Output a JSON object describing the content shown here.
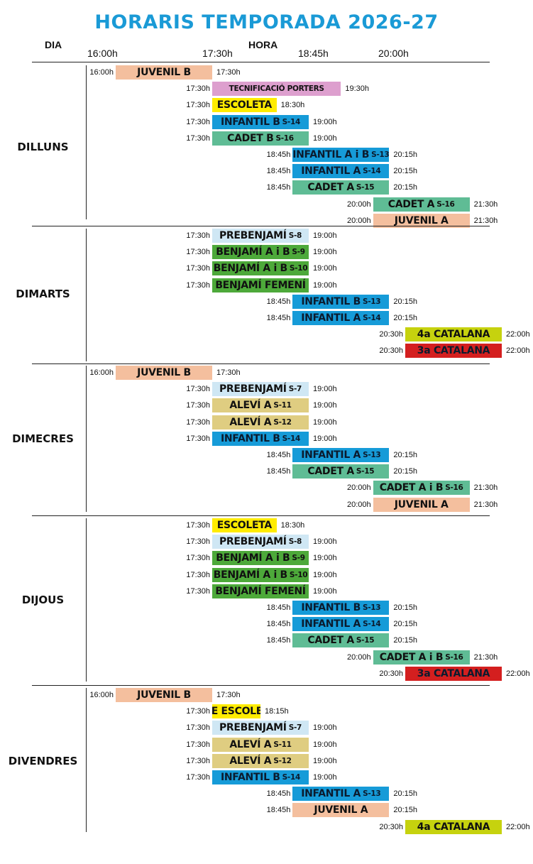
{
  "header": {
    "title": "HORARIS TEMPORADA 2026-27",
    "dia_label": "DIA",
    "hora_label": "HORA",
    "time_axis": [
      "16:00h",
      "17:30h",
      "18:45h",
      "20:00h"
    ]
  },
  "colors": {
    "juvenil": "#f4bf9e",
    "tecnificacio": "#dd9fce",
    "escoleta": "#ffec00",
    "infantil": "#169bd8",
    "cadet": "#5fbc95",
    "prebenjami": "#cfe7f4",
    "benjami": "#4da93a",
    "catalana4": "#c6d20e",
    "catalana3": "#d41f1f",
    "alevi": "#dfcd81"
  },
  "days": [
    {
      "name": "DILLUNS",
      "rows": [
        {
          "start": "16:00h",
          "label": "JUVENIL B",
          "sub": "",
          "end": "17:30h",
          "color": "juvenil"
        },
        {
          "start": "17:30h",
          "label": "TECNIFICACIÓ PORTERS",
          "sub": "",
          "end": "19:30h",
          "color": "tecnificacio",
          "small": true
        },
        {
          "start": "17:30h",
          "label": "ESCOLETA",
          "sub": "",
          "end": "18:30h",
          "color": "escoleta"
        },
        {
          "start": "17:30h",
          "label": "INFANTIL B",
          "sub": "S-14",
          "end": "19:00h",
          "color": "infantil"
        },
        {
          "start": "17:30h",
          "label": "CADET B",
          "sub": "S-16",
          "end": "19:00h",
          "color": "cadet"
        },
        {
          "start": "18:45h",
          "label": "INFANTIL A i B",
          "sub": "S-13",
          "end": "20:15h",
          "color": "infantil"
        },
        {
          "start": "18:45h",
          "label": "INFANTIL A",
          "sub": "S-14",
          "end": "20:15h",
          "color": "infantil"
        },
        {
          "start": "18:45h",
          "label": "CADET A",
          "sub": "S-15",
          "end": "20:15h",
          "color": "cadet"
        },
        {
          "start": "20:00h",
          "label": "CADET A",
          "sub": "S-16",
          "end": "21:30h",
          "color": "cadet"
        },
        {
          "start": "20:00h",
          "label": "JUVENIL A",
          "sub": "",
          "end": "21:30h",
          "color": "juvenil"
        }
      ]
    },
    {
      "name": "DIMARTS",
      "rows": [
        {
          "start": "17:30h",
          "label": "PREBENJAMÍ",
          "sub": "S-8",
          "end": "19:00h",
          "color": "prebenjami"
        },
        {
          "start": "17:30h",
          "label": "BENJAMÍ A i B",
          "sub": "S-9",
          "end": "19:00h",
          "color": "benjami"
        },
        {
          "start": "17:30h",
          "label": "BENJAMÍ A i B",
          "sub": "S-10",
          "end": "19:00h",
          "color": "benjami"
        },
        {
          "start": "17:30h",
          "label": "BENJAMÍ FEMENÍ",
          "sub": "",
          "end": "19:00h",
          "color": "benjami"
        },
        {
          "start": "18:45h",
          "label": "INFANTIL B",
          "sub": "S-13",
          "end": "20:15h",
          "color": "infantil"
        },
        {
          "start": "18:45h",
          "label": "INFANTIL A",
          "sub": "S-14",
          "end": "20:15h",
          "color": "infantil"
        },
        {
          "start": "20:30h",
          "label": "4a CATALANA",
          "sub": "",
          "end": "22:00h",
          "color": "catalana4"
        },
        {
          "start": "20:30h",
          "label": "3a CATALANA",
          "sub": "",
          "end": "22:00h",
          "color": "catalana3"
        }
      ]
    },
    {
      "name": "DIMECRES",
      "rows": [
        {
          "start": "16:00h",
          "label": "JUVENIL B",
          "sub": "",
          "end": "17:30h",
          "color": "juvenil"
        },
        {
          "start": "17:30h",
          "label": "PREBENJAMÍ",
          "sub": "S-7",
          "end": "19:00h",
          "color": "prebenjami"
        },
        {
          "start": "17:30h",
          "label": "ALEVÍ A",
          "sub": "S-11",
          "end": "19:00h",
          "color": "alevi"
        },
        {
          "start": "17:30h",
          "label": "ALEVÍ A",
          "sub": "S-12",
          "end": "19:00h",
          "color": "alevi"
        },
        {
          "start": "17:30h",
          "label": "INFANTIL B",
          "sub": "S-14",
          "end": "19:00h",
          "color": "infantil"
        },
        {
          "start": "18:45h",
          "label": "INFANTIL A",
          "sub": "S-13",
          "end": "20:15h",
          "color": "infantil"
        },
        {
          "start": "18:45h",
          "label": "CADET A",
          "sub": "S-15",
          "end": "20:15h",
          "color": "cadet"
        },
        {
          "start": "20:00h",
          "label": "CADET A i B",
          "sub": "S-16",
          "end": "21:30h",
          "color": "cadet"
        },
        {
          "start": "20:00h",
          "label": "JUVENIL A",
          "sub": "",
          "end": "21:30h",
          "color": "juvenil"
        }
      ]
    },
    {
      "name": "DIJOUS",
      "rows": [
        {
          "start": "17:30h",
          "label": "ESCOLETA",
          "sub": "",
          "end": "18:30h",
          "color": "escoleta"
        },
        {
          "start": "17:30h",
          "label": "PREBENJAMÍ",
          "sub": "S-8",
          "end": "19:00h",
          "color": "prebenjami"
        },
        {
          "start": "17:30h",
          "label": "BENJAMÍ A i B",
          "sub": "S-9",
          "end": "19:00h",
          "color": "benjami"
        },
        {
          "start": "17:30h",
          "label": "BENJAMÍ A i B",
          "sub": "S-10",
          "end": "19:00h",
          "color": "benjami"
        },
        {
          "start": "17:30h",
          "label": "BENJAMÍ FEMENÍ",
          "sub": "",
          "end": "19:00h",
          "color": "benjami"
        },
        {
          "start": "18:45h",
          "label": "INFANTIL B",
          "sub": "S-13",
          "end": "20:15h",
          "color": "infantil"
        },
        {
          "start": "18:45h",
          "label": "INFANTIL A",
          "sub": "S-14",
          "end": "20:15h",
          "color": "infantil"
        },
        {
          "start": "18:45h",
          "label": "CADET A",
          "sub": "S-15",
          "end": "20:15h",
          "color": "cadet"
        },
        {
          "start": "20:00h",
          "label": "CADET A i B",
          "sub": "S-16",
          "end": "21:30h",
          "color": "cadet"
        },
        {
          "start": "20:30h",
          "label": "3a CATALANA",
          "sub": "",
          "end": "22:00h",
          "color": "catalana3"
        }
      ]
    },
    {
      "name": "DIVENDRES",
      "rows": [
        {
          "start": "16:00h",
          "label": "JUVENIL B",
          "sub": "",
          "end": "17:30h",
          "color": "juvenil"
        },
        {
          "start": "17:30h",
          "label": "PRE ESCOLETA",
          "sub": "",
          "end": "18:15h",
          "color": "escoleta"
        },
        {
          "start": "17:30h",
          "label": "PREBENJAMÍ",
          "sub": "S-7",
          "end": "19:00h",
          "color": "prebenjami"
        },
        {
          "start": "17:30h",
          "label": "ALEVÍ A",
          "sub": "S-11",
          "end": "19:00h",
          "color": "alevi"
        },
        {
          "start": "17:30h",
          "label": "ALEVÍ A",
          "sub": "S-12",
          "end": "19:00h",
          "color": "alevi"
        },
        {
          "start": "17:30h",
          "label": "INFANTIL B",
          "sub": "S-14",
          "end": "19:00h",
          "color": "infantil"
        },
        {
          "start": "18:45h",
          "label": "INFANTIL A",
          "sub": "S-13",
          "end": "20:15h",
          "color": "infantil"
        },
        {
          "start": "18:45h",
          "label": "JUVENIL A",
          "sub": "",
          "end": "20:15h",
          "color": "juvenil"
        },
        {
          "start": "20:30h",
          "label": "4a CATALANA",
          "sub": "",
          "end": "22:00h",
          "color": "catalana4"
        }
      ]
    }
  ]
}
